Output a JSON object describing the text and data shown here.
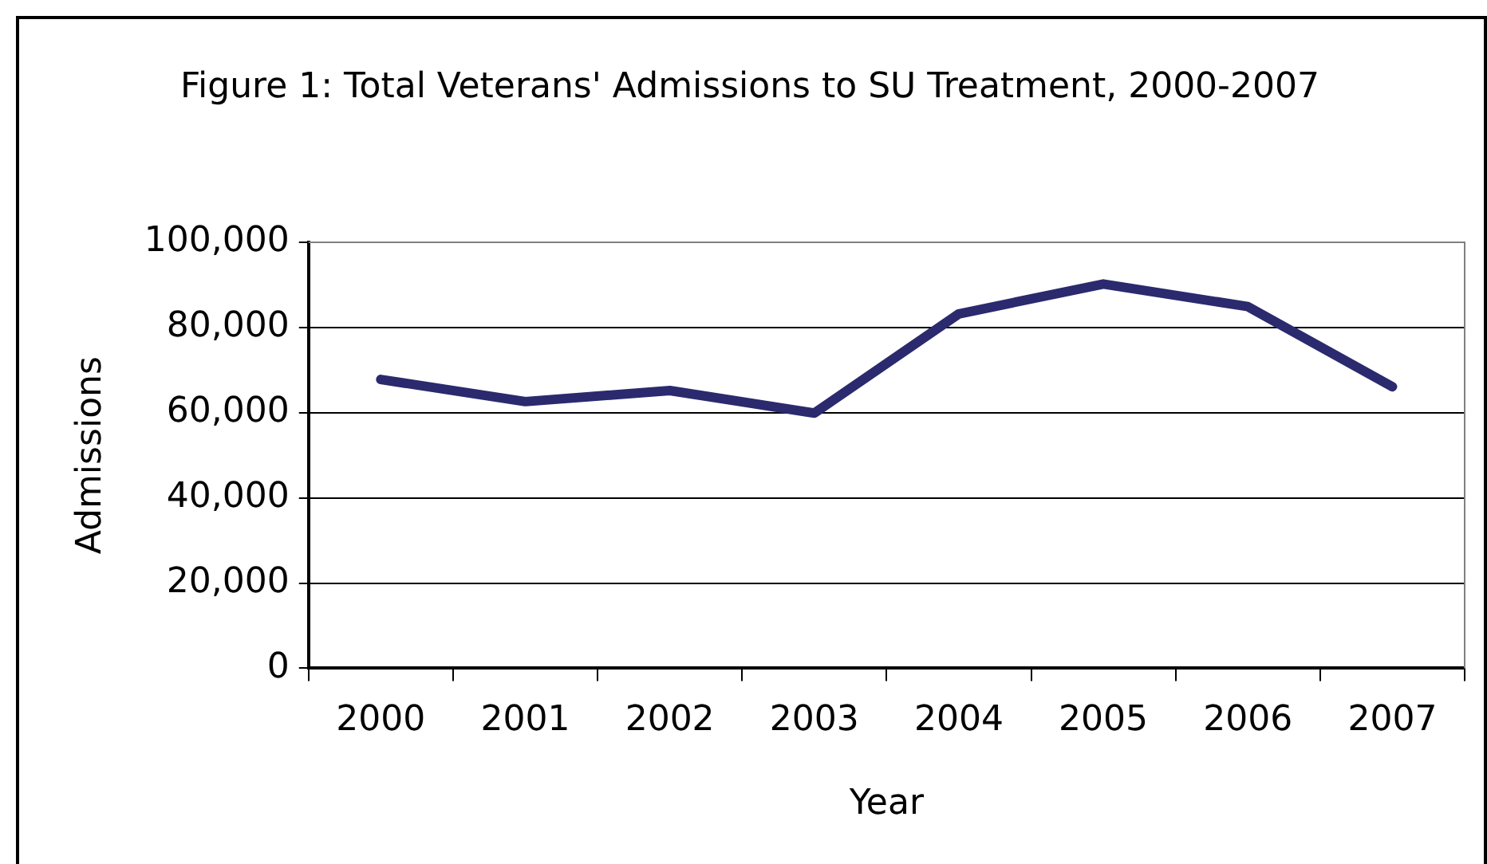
{
  "chart_data": {
    "type": "line",
    "title": "Figure 1: Total Veterans' Admissions to SU Treatment, 2000-2007",
    "xlabel": "Year",
    "ylabel": "Admissions",
    "categories": [
      "2000",
      "2001",
      "2002",
      "2003",
      "2004",
      "2005",
      "2006",
      "2007"
    ],
    "series": [
      {
        "color": "#2b2a6e",
        "values": [
          67800,
          62600,
          65200,
          59900,
          83200,
          90200,
          84900,
          66100
        ]
      }
    ],
    "ylim": [
      0,
      100000
    ],
    "yticks": [
      {
        "value": 0,
        "label": "0"
      },
      {
        "value": 20000,
        "label": "20,000"
      },
      {
        "value": 40000,
        "label": "40,000"
      },
      {
        "value": 60000,
        "label": "60,000"
      },
      {
        "value": 80000,
        "label": "80,000"
      },
      {
        "value": 100000,
        "label": "100,000"
      }
    ],
    "grid": "y",
    "legend": false,
    "marker": "none",
    "line_style": "solid"
  }
}
